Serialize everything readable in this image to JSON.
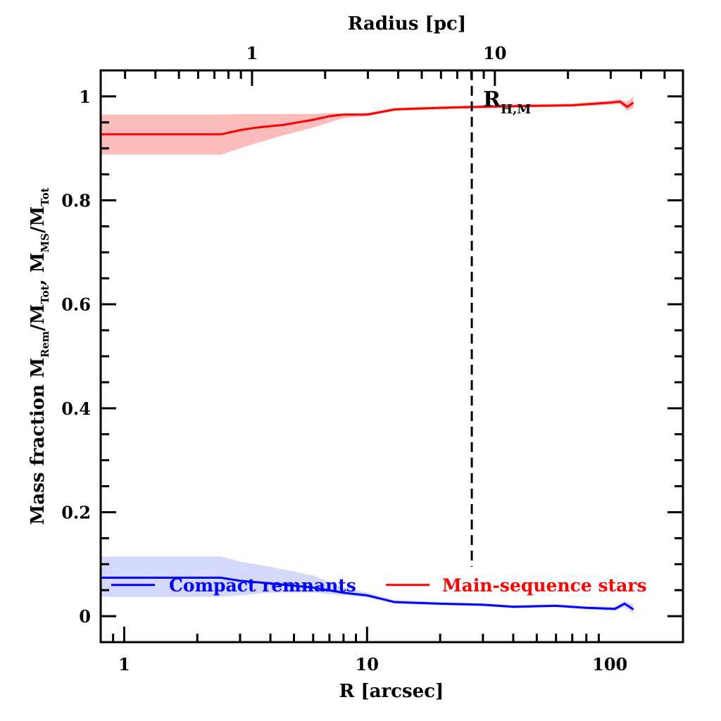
{
  "chart_data": {
    "type": "line",
    "title": "",
    "xlabel": "R [arcsec]",
    "ylabel_parts": [
      "Mass fraction  M",
      "Rem",
      "/M",
      "Tot",
      ",  M",
      "MS",
      "/M",
      "Tot"
    ],
    "top_xlabel": "Radius [pc]",
    "xscale": "log",
    "xlim": [
      0.8,
      200
    ],
    "ylim": [
      -0.05,
      1.05
    ],
    "x_ticks": [
      {
        "v": 1,
        "label": "1"
      },
      {
        "v": 10,
        "label": "10"
      },
      {
        "v": 100,
        "label": "100"
      }
    ],
    "y_ticks": [
      {
        "v": 0,
        "label": "0"
      },
      {
        "v": 0.2,
        "label": "0.2"
      },
      {
        "v": 0.4,
        "label": "0.4"
      },
      {
        "v": 0.6,
        "label": "0.6"
      },
      {
        "v": 0.8,
        "label": "0.8"
      },
      {
        "v": 1,
        "label": "1"
      }
    ],
    "top_ticks_pc": [
      {
        "v": 1,
        "label": "1"
      },
      {
        "v": 10,
        "label": "10"
      }
    ],
    "arcsec_per_pc": 3.36,
    "half_mass_radius": {
      "x": 27,
      "label_main": "R",
      "label_sub": "H,M"
    },
    "legend_placement": "bottom",
    "series": [
      {
        "name": "Compact remnants",
        "color": "#0000ff",
        "band_color": "#d4d8fb",
        "x": [
          0.8,
          2.5,
          3,
          4,
          6,
          8,
          10,
          13,
          20,
          30,
          40,
          60,
          80,
          105,
          115,
          125
        ],
        "y": [
          0.074,
          0.074,
          0.068,
          0.063,
          0.055,
          0.045,
          0.04,
          0.027,
          0.024,
          0.022,
          0.018,
          0.02,
          0.016,
          0.014,
          0.024,
          0.013
        ],
        "band_lo": [
          0.037,
          0.037,
          0.04,
          0.045,
          0.045,
          0.04,
          0.036,
          0.024,
          0.021,
          0.019,
          0.015,
          0.017,
          0.013,
          0.01,
          0.018,
          0.005
        ],
        "band_hi": [
          0.115,
          0.115,
          0.105,
          0.095,
          0.078,
          0.055,
          0.045,
          0.031,
          0.027,
          0.025,
          0.021,
          0.023,
          0.019,
          0.018,
          0.03,
          0.022
        ]
      },
      {
        "name": "Main-sequence stars",
        "color": "#ff0000",
        "band_color": "#fdbcbc",
        "x": [
          0.8,
          2.5,
          3,
          3.5,
          4.5,
          6,
          7,
          8,
          10,
          13,
          20,
          30,
          50,
          70,
          100,
          110,
          118,
          125
        ],
        "y": [
          0.927,
          0.927,
          0.935,
          0.94,
          0.945,
          0.955,
          0.962,
          0.965,
          0.965,
          0.975,
          0.978,
          0.98,
          0.982,
          0.983,
          0.988,
          0.99,
          0.98,
          0.988
        ],
        "band_lo": [
          0.888,
          0.888,
          0.9,
          0.91,
          0.925,
          0.94,
          0.95,
          0.958,
          0.962,
          0.972,
          0.975,
          0.977,
          0.979,
          0.98,
          0.984,
          0.986,
          0.972,
          0.978
        ],
        "band_hi": [
          0.965,
          0.965,
          0.966,
          0.966,
          0.966,
          0.966,
          0.968,
          0.967,
          0.968,
          0.978,
          0.981,
          0.983,
          0.985,
          0.986,
          0.992,
          0.994,
          0.99,
          1.0
        ]
      }
    ]
  }
}
